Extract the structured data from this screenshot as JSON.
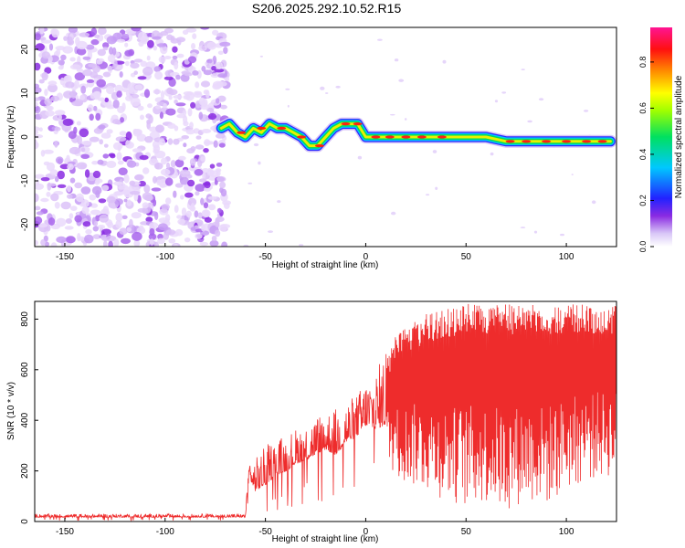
{
  "title": "S206.2025.292.10.52.R15",
  "chart_data": [
    {
      "type": "heatmap",
      "name": "spectrogram",
      "xlabel": "Height of straight line (km)",
      "ylabel": "Frequency (Hz)",
      "xlim": [
        -165,
        125
      ],
      "ylim": [
        -25,
        25
      ],
      "xticks": [
        -150,
        -100,
        -50,
        0,
        50,
        100
      ],
      "yticks": [
        -20,
        -10,
        0,
        10,
        20
      ],
      "colorbar": {
        "label": "Normalized spectral amplitude",
        "range": [
          0,
          0.95
        ],
        "ticks": [
          0.0,
          0.2,
          0.4,
          0.6,
          0.8
        ]
      },
      "noise_region_km": [
        -165,
        -69
      ],
      "signal_track": {
        "x": [
          -72,
          -68,
          -64,
          -60,
          -56,
          -52,
          -48,
          -44,
          -40,
          -36,
          -32,
          -28,
          -24,
          -20,
          -16,
          -12,
          -8,
          -4,
          0,
          10,
          20,
          30,
          40,
          50,
          60,
          70,
          80,
          90,
          100,
          110,
          122
        ],
        "y": [
          2,
          3,
          1,
          0,
          2,
          1,
          3,
          2,
          2,
          1,
          0,
          -2,
          -2,
          0,
          2,
          3,
          3,
          3,
          0,
          0,
          0,
          0,
          0,
          0,
          0,
          -1,
          -1,
          -1,
          -1,
          -1,
          -1
        ]
      }
    },
    {
      "type": "line",
      "name": "snr",
      "xlabel": "Height of straight line (km)",
      "ylabel": "SNR (10 * v/v)",
      "xlim": [
        -165,
        125
      ],
      "ylim": [
        0,
        870
      ],
      "xticks": [
        -150,
        -100,
        -50,
        0,
        50,
        100
      ],
      "yticks": [
        0,
        200,
        400,
        600,
        800
      ],
      "color": "#ee2c2c",
      "series": [
        {
          "name": "SNR",
          "x": [
            -165,
            -60,
            -58,
            -57,
            -55,
            -50,
            -45,
            -40,
            -35,
            -30,
            -25,
            -20,
            -15,
            -10,
            -5,
            0,
            5,
            10,
            20,
            30,
            40,
            50,
            60,
            70,
            80,
            90,
            100,
            110,
            125
          ],
          "envelope_low": [
            10,
            10,
            140,
            120,
            50,
            60,
            100,
            120,
            150,
            160,
            180,
            200,
            160,
            220,
            240,
            280,
            240,
            220,
            150,
            120,
            80,
            60,
            70,
            40,
            80,
            60,
            120,
            160,
            180
          ],
          "envelope_high": [
            30,
            30,
            260,
            220,
            250,
            300,
            330,
            340,
            370,
            390,
            420,
            440,
            450,
            480,
            500,
            560,
            600,
            680,
            780,
            820,
            840,
            860,
            860,
            860,
            860,
            860,
            860,
            860,
            860
          ]
        }
      ]
    }
  ]
}
